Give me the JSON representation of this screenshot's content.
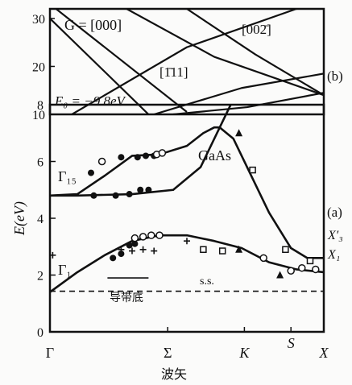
{
  "chart_data": [
    {
      "panel_label": "(b)",
      "type": "line",
      "xlim": [
        0,
        1
      ],
      "ylim": [
        10,
        32
      ],
      "y_ticks": [
        10,
        20,
        30
      ],
      "annotations": {
        "g000": "G = [000]",
        "g111": "[1̄11]",
        "g002": "[002̄]",
        "e0": "E₀ = −9.8eV"
      },
      "series": [
        {
          "x": [
            0.0,
            0.36
          ],
          "y": [
            30.0,
            10.0
          ]
        },
        {
          "x": [
            0.0,
            0.5
          ],
          "y": [
            33.0,
            10.5
          ]
        },
        {
          "x": [
            0.08,
            0.5,
            0.9,
            1.0
          ],
          "y": [
            10.0,
            24.0,
            32.0,
            32.5
          ]
        },
        {
          "x": [
            0.28,
            0.6,
            1.0
          ],
          "y": [
            32.0,
            22.0,
            14.0
          ]
        },
        {
          "x": [
            0.5,
            0.75,
            1.0
          ],
          "y": [
            32.0,
            22.5,
            14.0
          ]
        },
        {
          "x": [
            0.38,
            0.7,
            1.0
          ],
          "y": [
            10.0,
            15.5,
            18.5
          ]
        },
        {
          "x": [
            0.45,
            0.72,
            1.0
          ],
          "y": [
            10.0,
            11.5,
            14.5
          ]
        }
      ]
    },
    {
      "panel_label": "(a)",
      "type": "scatter",
      "title": "GaAs",
      "ylabel": "E(eV)",
      "xlabel": "波矢",
      "xlim": [
        0,
        1
      ],
      "ylim": [
        0,
        8
      ],
      "y_ticks": [
        0,
        2,
        4,
        6,
        8
      ],
      "x_ticks": [
        {
          "label": "Γ",
          "x": 0.0
        },
        {
          "label": "Σ",
          "x": 0.43
        },
        {
          "label": "K",
          "x": 0.71
        },
        {
          "label": "S",
          "x": 0.88
        },
        {
          "label": "X",
          "x": 1.0
        }
      ],
      "annotations": {
        "gamma15": "Γ₁₅",
        "gamma1": "Γ₁",
        "ss": "s.s.",
        "cbm": "导带底",
        "x3": "X′₃",
        "x1": "X₁"
      },
      "conduction_band_bottom_eV": 1.43,
      "series": [
        {
          "name": "curve_upper",
          "x": [
            0.0,
            0.1,
            0.2,
            0.3,
            0.4,
            0.5,
            0.56,
            0.6,
            0.62,
            0.67,
            0.72,
            0.8,
            0.88,
            0.94,
            1.0
          ],
          "y": [
            4.8,
            4.85,
            5.5,
            6.2,
            6.25,
            6.55,
            7.0,
            7.2,
            7.2,
            6.8,
            5.8,
            4.2,
            2.95,
            2.6,
            2.6
          ]
        },
        {
          "name": "curve_gamma15",
          "x": [
            0.0,
            0.1,
            0.3,
            0.45,
            0.55,
            0.62
          ],
          "y": [
            4.8,
            4.8,
            4.85,
            5.0,
            5.8,
            7.2
          ]
        },
        {
          "name": "curve_gamma1",
          "x": [
            0.0,
            0.1,
            0.2,
            0.3,
            0.4,
            0.5,
            0.6,
            0.7,
            0.8,
            0.9,
            1.0
          ],
          "y": [
            1.4,
            2.1,
            2.7,
            3.2,
            3.4,
            3.4,
            3.2,
            2.95,
            2.45,
            2.2,
            2.1
          ]
        },
        {
          "name": "curve_upper_extension",
          "x": [
            0.62,
            0.66
          ],
          "y": [
            7.2,
            8.0
          ]
        },
        {
          "name": "surface_states",
          "x": [
            0.21,
            0.36
          ],
          "y": [
            1.9,
            1.9
          ]
        },
        {
          "name": "filled_points",
          "x": [
            0.15,
            0.26,
            0.32,
            0.35,
            0.38,
            0.16,
            0.24,
            0.29,
            0.33,
            0.36,
            0.23,
            0.26,
            0.29,
            0.31
          ],
          "y": [
            5.6,
            6.15,
            6.15,
            6.2,
            6.2,
            4.8,
            4.8,
            4.85,
            5.0,
            5.0,
            2.6,
            2.75,
            3.05,
            3.1
          ]
        },
        {
          "name": "open_points",
          "x": [
            0.19,
            0.39,
            0.41,
            0.31,
            0.34,
            0.37,
            0.4,
            0.78,
            0.88,
            0.92,
            0.97
          ],
          "y": [
            6.0,
            6.25,
            6.3,
            3.3,
            3.35,
            3.4,
            3.4,
            2.6,
            2.15,
            2.25,
            2.2
          ]
        },
        {
          "name": "plus_points",
          "x": [
            0.26,
            0.3,
            0.34,
            0.38,
            0.5,
            0.01
          ],
          "y": [
            2.9,
            2.85,
            2.9,
            2.85,
            3.2,
            2.7
          ]
        },
        {
          "name": "square_points",
          "x": [
            0.56,
            0.63,
            0.74,
            0.86,
            0.95
          ],
          "y": [
            2.9,
            2.85,
            5.7,
            2.9,
            2.5
          ]
        },
        {
          "name": "triangle_points",
          "x": [
            0.69,
            0.69,
            0.84
          ],
          "y": [
            7.0,
            2.9,
            2.0
          ]
        }
      ]
    }
  ]
}
